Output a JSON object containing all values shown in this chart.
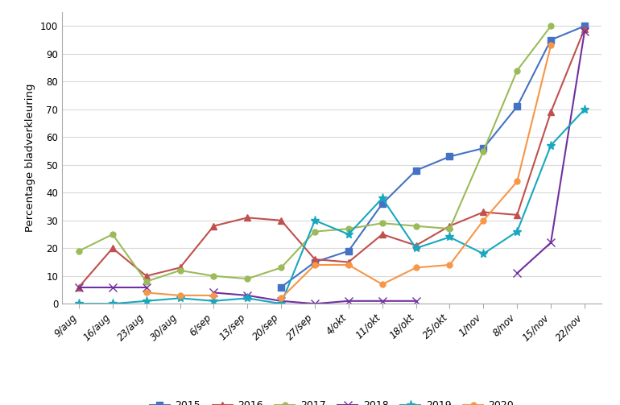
{
  "x_labels": [
    "9/aug",
    "16/aug",
    "23/aug",
    "30/aug",
    "6/sep",
    "13/sep",
    "20/sep",
    "27/sep",
    "4/okt",
    "11/okt",
    "18/okt",
    "25/okt",
    "1/nov",
    "8/nov",
    "15/nov",
    "22/nov"
  ],
  "series": {
    "2015": {
      "color": "#4472C4",
      "marker": "s",
      "markersize": 6,
      "values": [
        null,
        null,
        null,
        null,
        null,
        null,
        6,
        15,
        19,
        36,
        48,
        53,
        56,
        71,
        95,
        100
      ]
    },
    "2016": {
      "color": "#C0504D",
      "marker": "^",
      "markersize": 6,
      "values": [
        6,
        20,
        10,
        13,
        28,
        31,
        30,
        16,
        15,
        25,
        21,
        28,
        33,
        32,
        69,
        99
      ]
    },
    "2017": {
      "color": "#9BBB59",
      "marker": "o",
      "markersize": 5,
      "values": [
        19,
        25,
        8,
        12,
        10,
        9,
        13,
        26,
        27,
        29,
        28,
        27,
        55,
        84,
        100,
        null
      ]
    },
    "2018": {
      "color": "#7030A0",
      "marker": "x",
      "markersize": 7,
      "values": [
        6,
        6,
        6,
        null,
        4,
        3,
        1,
        0,
        1,
        1,
        1,
        null,
        null,
        11,
        22,
        98
      ]
    },
    "2019": {
      "color": "#17A8BF",
      "marker": "*",
      "markersize": 8,
      "values": [
        0,
        0,
        1,
        2,
        1,
        2,
        0,
        30,
        25,
        38,
        20,
        24,
        18,
        26,
        57,
        70
      ]
    },
    "2020": {
      "color": "#F79646",
      "marker": "o",
      "markersize": 5,
      "values": [
        null,
        null,
        4,
        3,
        3,
        null,
        2,
        14,
        14,
        7,
        13,
        14,
        30,
        44,
        93,
        null
      ]
    }
  },
  "ylabel": "Percentage bladverkleuring",
  "ylim": [
    0,
    105
  ],
  "yticks": [
    0,
    10,
    20,
    30,
    40,
    50,
    60,
    70,
    80,
    90,
    100
  ],
  "grid_color": "#D9D9D9",
  "legend_order": [
    "2015",
    "2016",
    "2017",
    "2018",
    "2019",
    "2020"
  ]
}
